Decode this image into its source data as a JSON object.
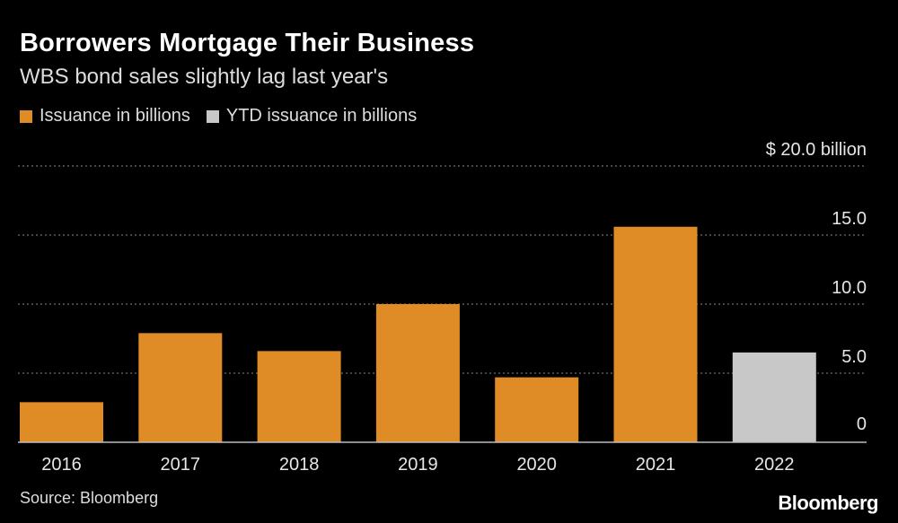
{
  "header": {
    "title": "Borrowers Mortgage Their Business",
    "subtitle": "WBS bond sales slightly lag last year's"
  },
  "legend": [
    {
      "label": "Issuance in billions",
      "color": "#e08c26"
    },
    {
      "label": "YTD issuance in billions",
      "color": "#c8c8c8"
    }
  ],
  "footer": {
    "source": "Source: Bloomberg",
    "brand": "Bloomberg"
  },
  "chart_data": {
    "type": "bar",
    "categories": [
      "2016",
      "2017",
      "2018",
      "2019",
      "2020",
      "2021",
      "2022"
    ],
    "values": [
      2.9,
      7.9,
      6.6,
      10.0,
      4.7,
      15.6,
      6.5
    ],
    "series_index": [
      0,
      0,
      0,
      0,
      0,
      0,
      1
    ],
    "ylim": [
      0,
      20
    ],
    "yticks": [
      0,
      5,
      10,
      15,
      20
    ],
    "ytick_labels": [
      "0",
      "5.0",
      "10.0",
      "15.0",
      "$ 20.0 billion"
    ],
    "grid": true
  }
}
